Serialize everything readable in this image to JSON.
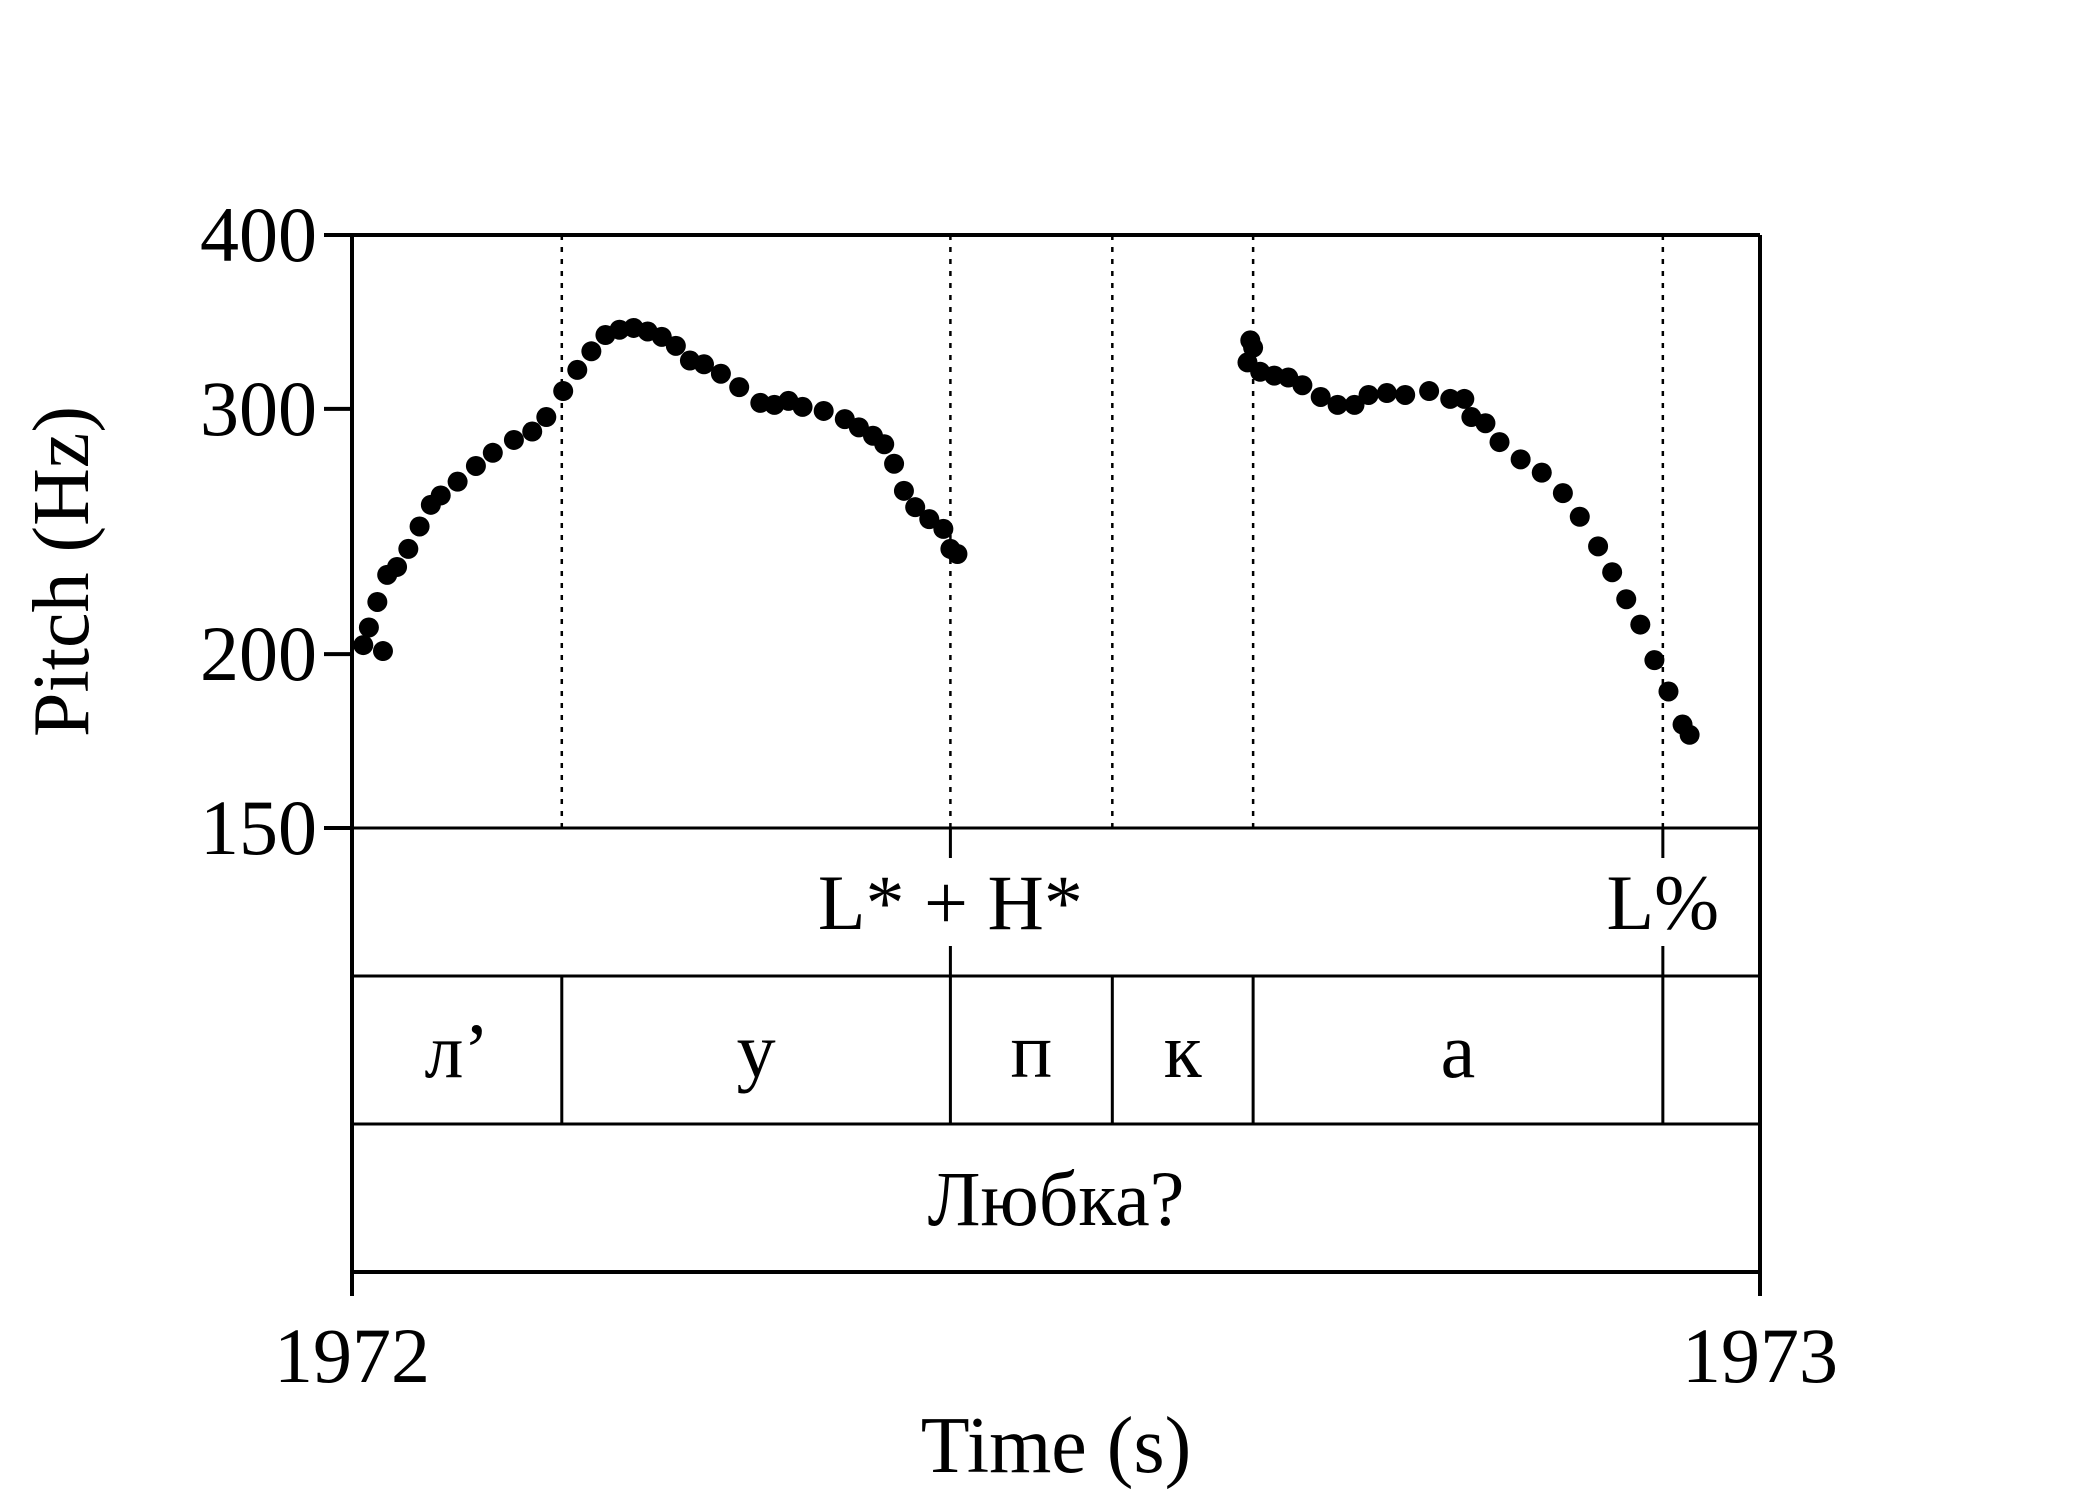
{
  "chart_data": {
    "type": "scatter",
    "title": "",
    "xlabel": "Time (s)",
    "ylabel": "Pitch (Hz)",
    "xlim": [
      1972,
      1973
    ],
    "ylim": [
      150,
      400
    ],
    "yscale": "log",
    "x_ticks": [
      "1972",
      "1973"
    ],
    "y_ticks": [
      400,
      300,
      200,
      150
    ],
    "y_tick_labels": [
      "400",
      "300",
      "200",
      "150"
    ],
    "grid": false,
    "legend": "none",
    "boundaries": [
      1972.149,
      1972.425,
      1972.54,
      1972.64,
      1972.931
    ],
    "series": [
      {
        "values": [
          [
            1972.008,
            203
          ],
          [
            1972.012,
            209
          ],
          [
            1972.018,
            218
          ],
          [
            1972.025,
            228
          ],
          [
            1972.032,
            231
          ],
          [
            1972.04,
            238
          ],
          [
            1972.048,
            247
          ],
          [
            1972.056,
            256
          ],
          [
            1972.063,
            260
          ],
          [
            1972.075,
            266
          ],
          [
            1972.088,
            273
          ],
          [
            1972.1,
            279
          ],
          [
            1972.115,
            285
          ],
          [
            1972.128,
            289
          ],
          [
            1972.138,
            296
          ],
          [
            1972.15,
            309
          ],
          [
            1972.16,
            320
          ],
          [
            1972.17,
            330
          ],
          [
            1972.18,
            339
          ],
          [
            1972.19,
            342
          ],
          [
            1972.2,
            343
          ],
          [
            1972.21,
            341
          ],
          [
            1972.22,
            338
          ],
          [
            1972.23,
            333
          ],
          [
            1972.24,
            325
          ],
          [
            1972.25,
            323
          ],
          [
            1972.262,
            318
          ],
          [
            1972.275,
            311
          ],
          [
            1972.29,
            303
          ],
          [
            1972.3,
            302
          ],
          [
            1972.31,
            304
          ],
          [
            1972.32,
            301
          ],
          [
            1972.335,
            299
          ],
          [
            1972.35,
            295
          ],
          [
            1972.36,
            291
          ],
          [
            1972.37,
            287
          ],
          [
            1972.378,
            283
          ],
          [
            1972.385,
            274
          ],
          [
            1972.392,
            262
          ],
          [
            1972.4,
            255
          ],
          [
            1972.41,
            250
          ],
          [
            1972.42,
            246
          ],
          [
            1972.425,
            238
          ],
          [
            1972.43,
            236
          ],
          [
            1972.022,
            201
          ],
          [
            1972.638,
            336
          ],
          [
            1972.64,
            332
          ],
          [
            1972.636,
            324
          ],
          [
            1972.645,
            319
          ],
          [
            1972.655,
            317
          ],
          [
            1972.665,
            316
          ],
          [
            1972.675,
            312
          ],
          [
            1972.688,
            306
          ],
          [
            1972.7,
            302
          ],
          [
            1972.712,
            302
          ],
          [
            1972.722,
            307
          ],
          [
            1972.735,
            308
          ],
          [
            1972.748,
            307
          ],
          [
            1972.765,
            309
          ],
          [
            1972.78,
            305
          ],
          [
            1972.79,
            305
          ],
          [
            1972.795,
            296
          ],
          [
            1972.805,
            293
          ],
          [
            1972.815,
            284
          ],
          [
            1972.83,
            276
          ],
          [
            1972.845,
            270
          ],
          [
            1972.86,
            261
          ],
          [
            1972.872,
            251
          ],
          [
            1972.885,
            239
          ],
          [
            1972.895,
            229
          ],
          [
            1972.905,
            219
          ],
          [
            1972.915,
            210
          ],
          [
            1972.925,
            198
          ],
          [
            1972.935,
            188
          ],
          [
            1972.945,
            178
          ],
          [
            1972.95,
            175
          ]
        ]
      }
    ]
  },
  "tiers": [
    {
      "intervals": [
        {
          "start": 1972.0,
          "end": 1973.0,
          "label": ""
        }
      ],
      "points": [
        {
          "time": 1972.425,
          "label": "L* + H*"
        },
        {
          "time": 1972.931,
          "label": "L%"
        }
      ]
    },
    {
      "intervals": [
        {
          "start": 1972.0,
          "end": 1972.149,
          "label": "л’"
        },
        {
          "start": 1972.149,
          "end": 1972.425,
          "label": "у"
        },
        {
          "start": 1972.425,
          "end": 1972.54,
          "label": "п"
        },
        {
          "start": 1972.54,
          "end": 1972.64,
          "label": "к"
        },
        {
          "start": 1972.64,
          "end": 1972.931,
          "label": "а"
        },
        {
          "start": 1972.931,
          "end": 1973.0,
          "label": ""
        }
      ],
      "points": []
    },
    {
      "intervals": [
        {
          "start": 1972.0,
          "end": 1973.0,
          "label": "Любка?"
        }
      ],
      "points": []
    }
  ]
}
